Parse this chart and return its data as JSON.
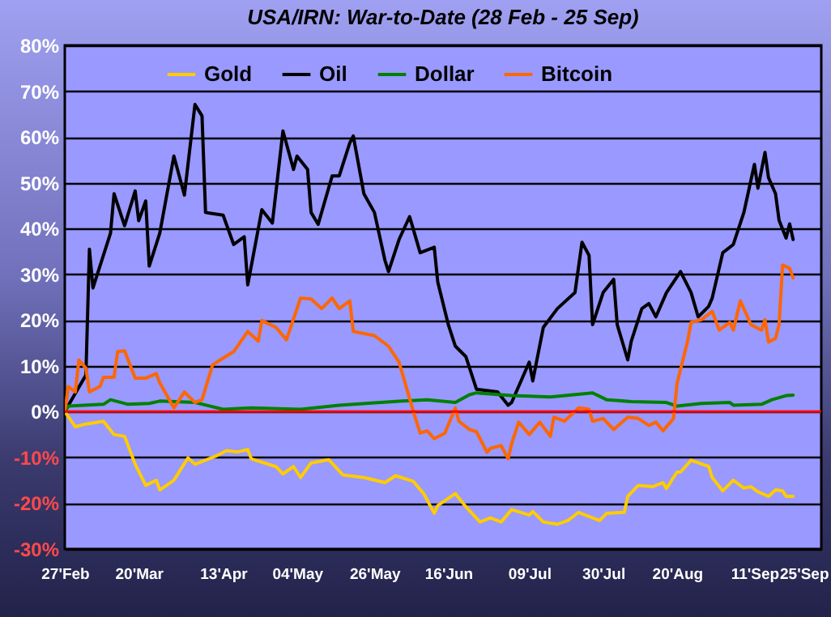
{
  "chart_data": {
    "type": "line",
    "title": "USA/IRN:  War-to-Date (28 Feb - 25 Sep)",
    "xlim": [
      "--02-27",
      "--09-30"
    ],
    "xticks": [
      {
        "value": "--02-27",
        "label": "27'Feb"
      },
      {
        "value": "--03-20",
        "label": "20'Mar"
      },
      {
        "value": "--04-13",
        "label": "13'Apr"
      },
      {
        "value": "--05-04",
        "label": "04'May"
      },
      {
        "value": "--05-26",
        "label": "26'May"
      },
      {
        "value": "--06-16",
        "label": "16'Jun"
      },
      {
        "value": "--07-09",
        "label": "09'Jul"
      },
      {
        "value": "--07-30",
        "label": "30'Jul"
      },
      {
        "value": "--08-20",
        "label": "20'Aug"
      },
      {
        "value": "--09-11",
        "label": "11'Sep"
      },
      {
        "value": "--09-25",
        "label": "25'Sep"
      }
    ],
    "ylim": [
      -30,
      80
    ],
    "yticks": [
      {
        "value": -30,
        "label": "-30%"
      },
      {
        "value": -20,
        "label": "-20%"
      },
      {
        "value": -10,
        "label": "-10%"
      },
      {
        "value": 0,
        "label": "0%"
      },
      {
        "value": 10,
        "label": "10%"
      },
      {
        "value": 20,
        "label": "20%"
      },
      {
        "value": 30,
        "label": "30%"
      },
      {
        "value": 40,
        "label": "40%"
      },
      {
        "value": 50,
        "label": "50%"
      },
      {
        "value": 60,
        "label": "60%"
      },
      {
        "value": 70,
        "label": "70%"
      },
      {
        "value": 80,
        "label": "80%"
      }
    ],
    "grid": "y",
    "legend": "top",
    "marker": "none",
    "ref_lines": [
      {
        "axis": "y",
        "value": 0,
        "color": "#ff0000"
      }
    ],
    "series": [
      {
        "name": "Gold",
        "color": "#ffcc00",
        "x": [
          "--02-27",
          "--03-02",
          "--03-05",
          "--03-06",
          "--03-10",
          "--03-13",
          "--03-16",
          "--03-19",
          "--03-22",
          "--03-25",
          "--03-26",
          "--03-30",
          "--04-03",
          "--04-05",
          "--04-11",
          "--04-14",
          "--04-17",
          "--04-20",
          "--04-21",
          "--04-28",
          "--04-30",
          "--05-03",
          "--05-05",
          "--05-08",
          "--05-13",
          "--05-17",
          "--05-23",
          "--05-29",
          "--06-01",
          "--06-06",
          "--06-09",
          "--06-12",
          "--06-13",
          "--06-18",
          "--06-21",
          "--06-25",
          "--06-28",
          "--07-01",
          "--07-04",
          "--07-09",
          "--07-10",
          "--07-13",
          "--07-17",
          "--07-20",
          "--07-23",
          "--07-29",
          "--07-31",
          "--08-05",
          "--08-06",
          "--08-09",
          "--08-13",
          "--08-16",
          "--08-17",
          "--08-20",
          "--08-21",
          "--08-24",
          "--08-29",
          "--08-30",
          "--09-02",
          "--09-05",
          "--09-08",
          "--09-10",
          "--09-12",
          "--09-15",
          "--09-17",
          "--09-19",
          "--09-20",
          "--09-22"
        ],
        "values": [
          0,
          -3.3,
          -2.7,
          -2.6,
          -2.1,
          -5,
          -5.4,
          -11.5,
          -16.1,
          -15,
          -17.1,
          -15,
          -10.1,
          -11.5,
          -9.7,
          -8.5,
          -8.8,
          -8.3,
          -10.3,
          -12,
          -13.6,
          -12,
          -14.4,
          -11.2,
          -10.5,
          -13.8,
          -14.4,
          -15.5,
          -14,
          -15.2,
          -17.9,
          -22.2,
          -20.5,
          -17.9,
          -20.8,
          -24.1,
          -23.2,
          -24.1,
          -21.4,
          -22.6,
          -21.8,
          -24.1,
          -24.6,
          -23.8,
          -22,
          -23.8,
          -22.2,
          -22,
          -18.5,
          -16.1,
          -16.4,
          -15.5,
          -16.8,
          -13.2,
          -13.2,
          -10.6,
          -12,
          -14.4,
          -17.3,
          -15,
          -16.7,
          -16.4,
          -17.5,
          -18.5,
          -17.1,
          -17.3,
          -18.5,
          -18.5
        ]
      },
      {
        "name": "Oil",
        "color": "#000000",
        "x": [
          "--02-27",
          "--03-05",
          "--03-06",
          "--03-07",
          "--03-12",
          "--03-13",
          "--03-16",
          "--03-19",
          "--03-20",
          "--03-22",
          "--03-23",
          "--03-26",
          "--03-30",
          "--04-02",
          "--04-05",
          "--04-07",
          "--04-08",
          "--04-13",
          "--04-16",
          "--04-19",
          "--04-20",
          "--04-21",
          "--04-24",
          "--04-27",
          "--04-30",
          "--05-03",
          "--05-04",
          "--05-07",
          "--05-08",
          "--05-10",
          "--05-14",
          "--05-16",
          "--05-19",
          "--05-20",
          "--05-23",
          "--05-26",
          "--05-29",
          "--05-30",
          "--06-02",
          "--06-05",
          "--06-08",
          "--06-12",
          "--06-13",
          "--06-16",
          "--06-18",
          "--06-21",
          "--06-24",
          "--06-30",
          "--07-03",
          "--07-04",
          "--07-09",
          "--07-10",
          "--07-13",
          "--07-17",
          "--07-22",
          "--07-24",
          "--07-26",
          "--07-27",
          "--07-30",
          "--08-02",
          "--08-03",
          "--08-06",
          "--08-07",
          "--08-10",
          "--08-12",
          "--08-14",
          "--08-17",
          "--08-21",
          "--08-24",
          "--08-26",
          "--08-29",
          "--08-30",
          "--09-02",
          "--09-05",
          "--09-08",
          "--09-11",
          "--09-12",
          "--09-14",
          "--09-15",
          "--09-17",
          "--09-18",
          "--09-20",
          "--09-21",
          "--09-22"
        ],
        "values": [
          0,
          8,
          35.5,
          27,
          39,
          47.6,
          40.6,
          48.2,
          41.7,
          46,
          31.8,
          39,
          55.8,
          47.3,
          67.1,
          64.6,
          43.5,
          42.9,
          36.5,
          38.2,
          27.7,
          31.8,
          44.1,
          41.2,
          61.3,
          52.9,
          55.8,
          52.9,
          43.5,
          40.9,
          51.5,
          51.5,
          58.7,
          60.2,
          47.6,
          43.5,
          33,
          30.6,
          37.6,
          42.6,
          34.7,
          35.9,
          28.3,
          19,
          14.3,
          12,
          4.9,
          4.3,
          1.4,
          2,
          10.8,
          6.7,
          18.4,
          22.5,
          26,
          37,
          34.1,
          19,
          26,
          28.9,
          19,
          11.3,
          15.4,
          22.5,
          23.6,
          20.7,
          26,
          30.6,
          26,
          20.7,
          23,
          24.8,
          34.7,
          36.5,
          43.5,
          54,
          48.8,
          56.6,
          51.1,
          47.6,
          41.8,
          37.9,
          41,
          37.6
        ]
      },
      {
        "name": "Dollar",
        "color": "#008000",
        "x": [
          "--02-27",
          "--02-28",
          "--03-10",
          "--03-12",
          "--03-17",
          "--03-23",
          "--03-26",
          "--04-05",
          "--04-13",
          "--04-21",
          "--05-05",
          "--05-16",
          "--05-26",
          "--06-03",
          "--06-10",
          "--06-18",
          "--06-22",
          "--06-24",
          "--07-04",
          "--07-15",
          "--07-27",
          "--07-31",
          "--08-07",
          "--08-17",
          "--08-20",
          "--08-27",
          "--09-04",
          "--09-05",
          "--09-13",
          "--09-16",
          "--09-20",
          "--09-22"
        ],
        "values": [
          0,
          1.2,
          1.6,
          2.6,
          1.6,
          1.8,
          2.3,
          2,
          0.5,
          0.8,
          0.5,
          1.4,
          1.9,
          2.3,
          2.6,
          2,
          3.7,
          4.1,
          3.5,
          3.2,
          4.1,
          2.6,
          2.2,
          2,
          1.2,
          1.8,
          2,
          1.4,
          1.6,
          2.6,
          3.5,
          3.6
        ]
      },
      {
        "name": "Bitcoin",
        "color": "#ff6600",
        "x": [
          "--02-27",
          "--02-28",
          "--03-02",
          "--03-03",
          "--03-05",
          "--03-06",
          "--03-09",
          "--03-10",
          "--03-13",
          "--03-14",
          "--03-16",
          "--03-19",
          "--03-22",
          "--03-25",
          "--03-26",
          "--03-30",
          "--04-02",
          "--04-05",
          "--04-07",
          "--04-10",
          "--04-13",
          "--04-16",
          "--04-20",
          "--04-23",
          "--04-24",
          "--04-28",
          "--05-01",
          "--05-05",
          "--05-08",
          "--05-11",
          "--05-14",
          "--05-16",
          "--05-19",
          "--05-20",
          "--05-26",
          "--05-30",
          "--06-02",
          "--06-06",
          "--06-08",
          "--06-10",
          "--06-12",
          "--06-15",
          "--06-18",
          "--06-19",
          "--06-22",
          "--06-24",
          "--06-27",
          "--06-28",
          "--07-01",
          "--07-03",
          "--07-04",
          "--07-06",
          "--07-09",
          "--07-12",
          "--07-15",
          "--07-16",
          "--07-19",
          "--07-23",
          "--07-26",
          "--07-27",
          "--07-30",
          "--08-02",
          "--08-05",
          "--08-06",
          "--08-09",
          "--08-12",
          "--08-14",
          "--08-16",
          "--08-19",
          "--08-20",
          "--08-23",
          "--08-24",
          "--08-27",
          "--08-30",
          "--09-01",
          "--09-04",
          "--09-05",
          "--09-07",
          "--09-10",
          "--09-13",
          "--09-14",
          "--09-15",
          "--09-17",
          "--09-18",
          "--09-19",
          "--09-21",
          "--09-22"
        ],
        "values": [
          0,
          5.5,
          4.3,
          11.3,
          9.5,
          4.3,
          5.5,
          7.5,
          7.5,
          13.1,
          13.3,
          7.3,
          7.3,
          8.3,
          6.3,
          0.8,
          4.3,
          2,
          2.6,
          10.2,
          11.7,
          13.1,
          17.5,
          15.4,
          19.9,
          18.4,
          15.7,
          24.8,
          24.6,
          22.5,
          24.8,
          22.5,
          24.2,
          17.5,
          16.6,
          14.3,
          10.8,
          0.2,
          -4.7,
          -4.2,
          -5.9,
          -4.7,
          0.8,
          -2.1,
          -3.9,
          -4.4,
          -8.9,
          -8,
          -7.4,
          -10.3,
          -7,
          -2.3,
          -5,
          -2.3,
          -5.4,
          -1.2,
          -2.1,
          0.8,
          0.5,
          -2.1,
          -1.5,
          -3.9,
          -1.9,
          -1.2,
          -1.5,
          -3,
          -2.3,
          -4.2,
          -1.5,
          6.1,
          15.4,
          19.5,
          20.1,
          21.9,
          17.8,
          19.5,
          17.8,
          24.2,
          19,
          17.8,
          20.1,
          15.2,
          16,
          19,
          32,
          31.3,
          29.2
        ]
      }
    ]
  }
}
